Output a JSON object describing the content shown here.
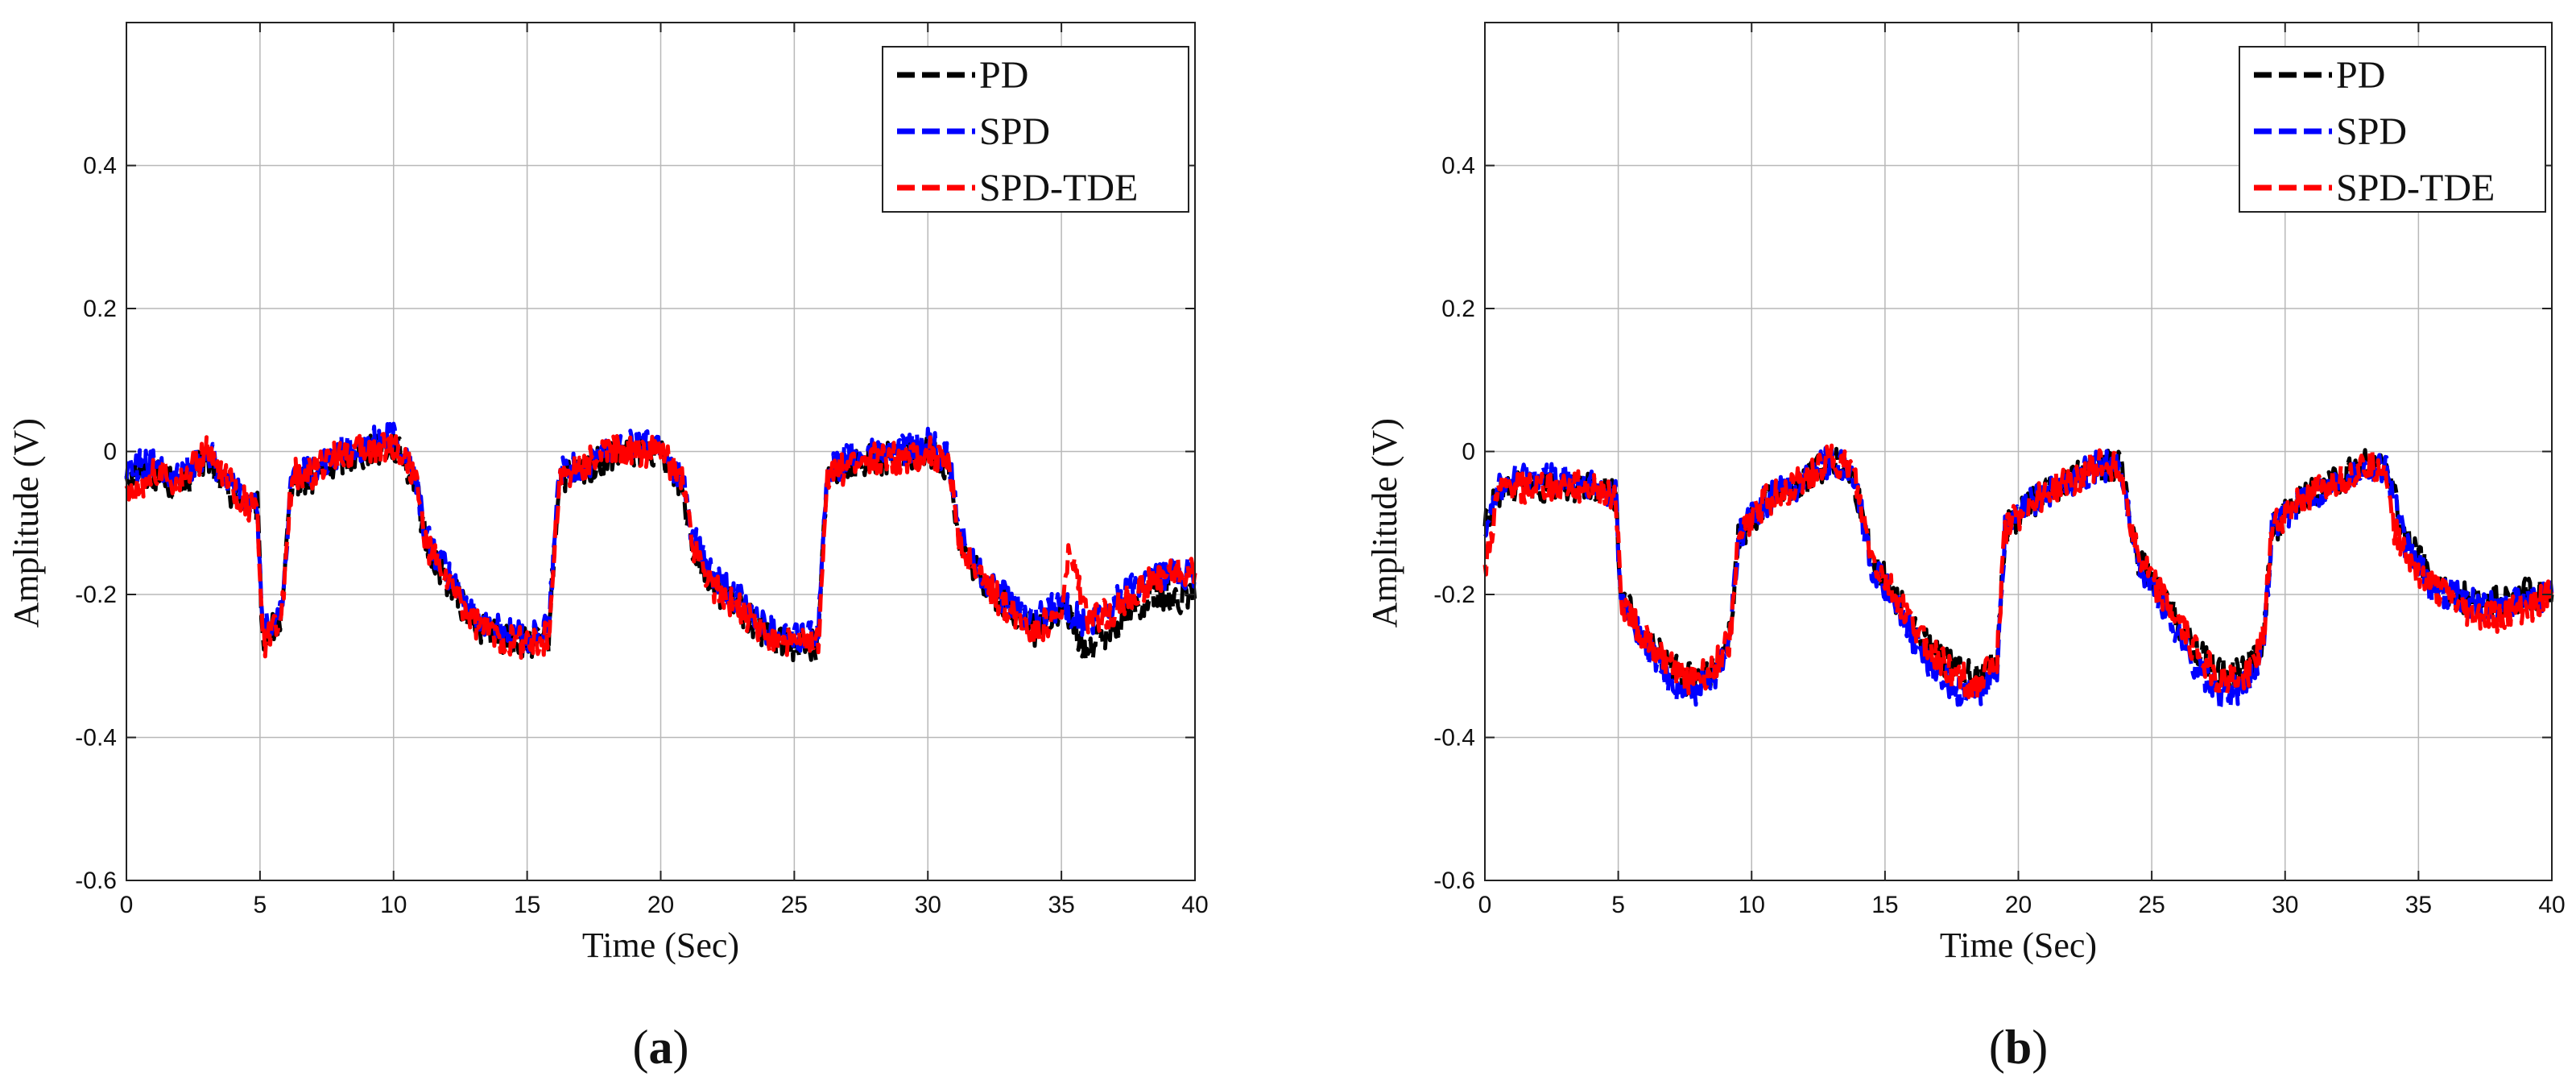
{
  "chart_data": [
    {
      "type": "line",
      "panel_label": "a",
      "xlabel": "Time (Sec)",
      "ylabel": "Amplitude (V)",
      "xlim": [
        0,
        40
      ],
      "ylim": [
        -0.6,
        0.6
      ],
      "xticks": [
        0,
        5,
        10,
        15,
        20,
        25,
        30,
        35,
        40
      ],
      "yticks": [
        -0.6,
        -0.4,
        -0.2,
        0,
        0.2,
        0.4
      ],
      "ytick_labels": [
        "-0.6",
        "-0.4",
        "-0.2",
        "0",
        "0.2",
        "0.4"
      ],
      "grid": true,
      "legend_position": "top-right",
      "series": [
        {
          "name": "PD",
          "color": "#000000",
          "x": [
            0,
            1,
            2,
            3,
            4,
            4.9,
            5.1,
            5.8,
            6.2,
            7,
            8,
            9,
            10,
            10.8,
            11.2,
            12,
            13,
            14,
            15,
            15.8,
            16.2,
            17,
            18,
            19,
            20,
            20.8,
            21.2,
            22,
            23,
            24,
            25,
            25.9,
            26.2,
            27,
            28,
            29,
            30,
            30.8,
            31.2,
            32,
            33,
            34,
            35,
            36,
            37,
            38,
            39,
            40
          ],
          "y": [
            -0.03,
            -0.03,
            -0.05,
            -0.01,
            -0.06,
            -0.08,
            -0.26,
            -0.24,
            -0.04,
            -0.04,
            -0.01,
            0.0,
            0.01,
            -0.04,
            -0.13,
            -0.18,
            -0.24,
            -0.26,
            -0.27,
            -0.26,
            -0.04,
            -0.03,
            -0.01,
            0.0,
            0.0,
            -0.05,
            -0.13,
            -0.19,
            -0.22,
            -0.26,
            -0.27,
            -0.27,
            -0.04,
            -0.02,
            -0.01,
            -0.01,
            0.0,
            -0.02,
            -0.13,
            -0.18,
            -0.22,
            -0.25,
            -0.22,
            -0.28,
            -0.24,
            -0.21,
            -0.2,
            -0.21
          ]
        },
        {
          "name": "SPD",
          "color": "#0000ff",
          "x": [
            0,
            1,
            2,
            3,
            4,
            4.9,
            5.1,
            5.8,
            6.2,
            7,
            8,
            9,
            10,
            10.8,
            11.2,
            12,
            13,
            14,
            15,
            15.8,
            16.2,
            17,
            18,
            19,
            20,
            20.8,
            21.2,
            22,
            23,
            24,
            25,
            25.9,
            26.2,
            27,
            28,
            29,
            30,
            30.8,
            31.2,
            32,
            33,
            34,
            35,
            36,
            37,
            38,
            39,
            40
          ],
          "y": [
            -0.02,
            -0.02,
            -0.04,
            0.0,
            -0.05,
            -0.08,
            -0.25,
            -0.23,
            -0.03,
            -0.03,
            0.0,
            0.01,
            0.02,
            -0.03,
            -0.12,
            -0.17,
            -0.23,
            -0.25,
            -0.26,
            -0.25,
            -0.03,
            -0.02,
            0.0,
            0.01,
            0.01,
            -0.04,
            -0.12,
            -0.18,
            -0.21,
            -0.25,
            -0.26,
            -0.26,
            -0.03,
            -0.01,
            0.0,
            0.0,
            0.01,
            -0.01,
            -0.12,
            -0.17,
            -0.21,
            -0.24,
            -0.21,
            -0.25,
            -0.21,
            -0.18,
            -0.17,
            -0.17
          ]
        },
        {
          "name": "SPD-TDE",
          "color": "#ff0000",
          "x": [
            0,
            1,
            2,
            3,
            4,
            4.9,
            5.1,
            5.8,
            6.2,
            7,
            8,
            9,
            10,
            10.8,
            11.2,
            12,
            13,
            14,
            15,
            15.8,
            16.2,
            17,
            18,
            19,
            20,
            20.8,
            21.2,
            22,
            23,
            24,
            25,
            25.9,
            26.2,
            27,
            28,
            29,
            30,
            30.8,
            31.2,
            32,
            33,
            34,
            35,
            35.3,
            36,
            37,
            38,
            39,
            40
          ],
          "y": [
            -0.06,
            -0.03,
            -0.04,
            0.0,
            -0.05,
            -0.09,
            -0.27,
            -0.24,
            -0.03,
            -0.03,
            0.0,
            0.0,
            0.01,
            -0.03,
            -0.13,
            -0.18,
            -0.24,
            -0.26,
            -0.27,
            -0.26,
            -0.04,
            -0.02,
            0.0,
            0.0,
            0.0,
            -0.04,
            -0.13,
            -0.19,
            -0.22,
            -0.26,
            -0.27,
            -0.27,
            -0.04,
            -0.02,
            -0.01,
            -0.01,
            0.0,
            -0.02,
            -0.13,
            -0.18,
            -0.22,
            -0.25,
            -0.23,
            -0.14,
            -0.24,
            -0.22,
            -0.19,
            -0.17,
            -0.17
          ]
        }
      ]
    },
    {
      "type": "line",
      "panel_label": "b",
      "xlabel": "Time (Sec)",
      "ylabel": "Amplitude (V)",
      "xlim": [
        0,
        40
      ],
      "ylim": [
        -0.6,
        0.6
      ],
      "xticks": [
        0,
        5,
        10,
        15,
        20,
        25,
        30,
        35,
        40
      ],
      "yticks": [
        -0.6,
        -0.4,
        -0.2,
        0,
        0.2,
        0.4
      ],
      "ytick_labels": [
        "-0.6",
        "-0.4",
        "-0.2",
        "0",
        "0.2",
        "0.4"
      ],
      "grid": true,
      "legend_position": "top-right",
      "series": [
        {
          "name": "PD",
          "color": "#000000",
          "x": [
            0,
            0.5,
            1,
            2,
            3,
            4,
            4.9,
            5.1,
            6,
            7,
            7.5,
            8.5,
            9.2,
            9.5,
            10.5,
            12,
            13,
            13.8,
            14.5,
            15.5,
            16.5,
            17.5,
            18.5,
            19.2,
            19.5,
            20.5,
            22,
            23,
            23.8,
            24.5,
            25.5,
            26.5,
            27.5,
            28.5,
            29.2,
            29.5,
            30.5,
            32,
            33,
            33.8,
            34.5,
            35.5,
            37,
            38,
            39,
            40
          ],
          "y": [
            -0.1,
            -0.06,
            -0.05,
            -0.05,
            -0.05,
            -0.05,
            -0.06,
            -0.2,
            -0.26,
            -0.3,
            -0.32,
            -0.31,
            -0.25,
            -0.12,
            -0.07,
            -0.04,
            -0.01,
            -0.03,
            -0.15,
            -0.21,
            -0.27,
            -0.3,
            -0.32,
            -0.29,
            -0.11,
            -0.07,
            -0.04,
            -0.02,
            -0.02,
            -0.15,
            -0.21,
            -0.27,
            -0.31,
            -0.31,
            -0.26,
            -0.11,
            -0.07,
            -0.04,
            -0.02,
            -0.02,
            -0.12,
            -0.18,
            -0.21,
            -0.21,
            -0.2,
            -0.2
          ]
        },
        {
          "name": "SPD",
          "color": "#0000ff",
          "x": [
            0,
            0.5,
            1,
            2,
            3,
            4,
            4.9,
            5.1,
            6,
            7,
            7.5,
            8.5,
            9.2,
            9.5,
            10.5,
            12,
            13,
            13.8,
            14.5,
            15.5,
            16.5,
            17.5,
            18.5,
            19.2,
            19.5,
            20.5,
            22,
            23,
            23.8,
            24.5,
            25.5,
            26.5,
            27.5,
            28.5,
            29.2,
            29.5,
            30.5,
            32,
            33,
            33.8,
            34.5,
            35.5,
            37,
            38,
            39,
            40
          ],
          "y": [
            -0.1,
            -0.05,
            -0.04,
            -0.03,
            -0.04,
            -0.05,
            -0.06,
            -0.21,
            -0.27,
            -0.32,
            -0.34,
            -0.32,
            -0.26,
            -0.12,
            -0.07,
            -0.04,
            -0.01,
            -0.03,
            -0.16,
            -0.22,
            -0.29,
            -0.33,
            -0.34,
            -0.3,
            -0.11,
            -0.07,
            -0.04,
            -0.02,
            -0.02,
            -0.16,
            -0.22,
            -0.29,
            -0.34,
            -0.33,
            -0.27,
            -0.11,
            -0.07,
            -0.04,
            -0.02,
            -0.02,
            -0.13,
            -0.19,
            -0.21,
            -0.22,
            -0.21,
            -0.2
          ]
        },
        {
          "name": "SPD-TDE",
          "color": "#ff0000",
          "x": [
            0,
            0.5,
            1,
            2,
            3,
            4,
            4.9,
            5.1,
            6,
            7,
            7.5,
            8.5,
            9.2,
            9.5,
            10.5,
            12,
            13,
            13.8,
            14.5,
            15.5,
            16.5,
            17.5,
            18.5,
            19.2,
            19.5,
            20.5,
            22,
            23,
            23.8,
            24.5,
            25.5,
            26.5,
            27.5,
            28.5,
            29.2,
            29.5,
            30.5,
            32,
            33,
            33.8,
            34,
            34.5,
            35.5,
            37,
            38,
            39,
            40
          ],
          "y": [
            -0.17,
            -0.06,
            -0.05,
            -0.05,
            -0.05,
            -0.05,
            -0.06,
            -0.21,
            -0.26,
            -0.3,
            -0.32,
            -0.31,
            -0.26,
            -0.12,
            -0.07,
            -0.04,
            -0.01,
            -0.03,
            -0.15,
            -0.21,
            -0.27,
            -0.31,
            -0.33,
            -0.29,
            -0.11,
            -0.07,
            -0.04,
            -0.02,
            -0.02,
            -0.15,
            -0.21,
            -0.27,
            -0.32,
            -0.32,
            -0.26,
            -0.11,
            -0.07,
            -0.04,
            -0.02,
            -0.02,
            -0.1,
            -0.14,
            -0.19,
            -0.23,
            -0.23,
            -0.22,
            -0.2
          ]
        }
      ]
    }
  ]
}
